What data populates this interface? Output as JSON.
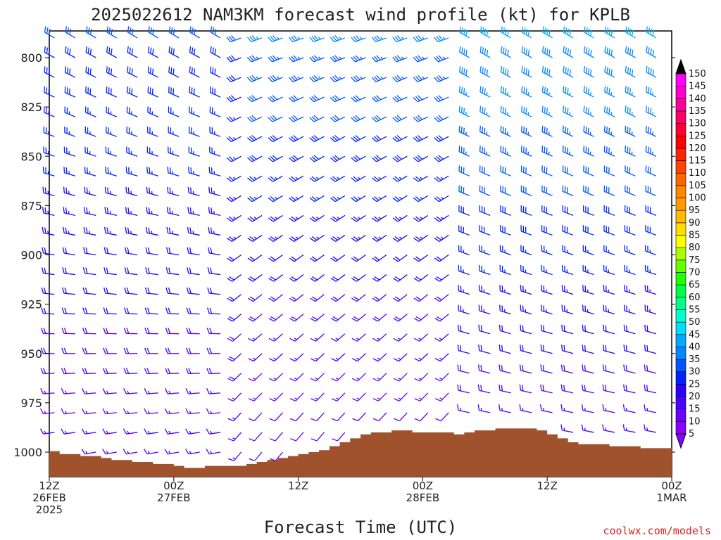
{
  "chart_data": {
    "type": "wind-profile-timeseries",
    "title": "2025022612 NAM3KM forecast wind profile (kt) for KPLB",
    "xlabel": "Forecast Time (UTC)",
    "credit": "coolwx.com/models",
    "y_axis": {
      "label": "",
      "inverted": true,
      "ticks": [
        800,
        825,
        850,
        875,
        900,
        925,
        950,
        975,
        1000
      ],
      "ylim": [
        1010,
        790
      ]
    },
    "x_axis": {
      "ticks": [
        {
          "hour": 0,
          "lines": [
            "12Z",
            "26FEB",
            "2025"
          ]
        },
        {
          "hour": 12,
          "lines": [
            "00Z",
            "27FEB"
          ]
        },
        {
          "hour": 24,
          "lines": [
            "12Z"
          ]
        },
        {
          "hour": 36,
          "lines": [
            "00Z",
            "28FEB"
          ]
        },
        {
          "hour": 48,
          "lines": [
            "12Z"
          ]
        },
        {
          "hour": 60,
          "lines": [
            "00Z",
            "1MAR"
          ]
        }
      ],
      "xlim": [
        0,
        60
      ]
    },
    "colorbar": {
      "labels": [
        5,
        10,
        15,
        20,
        25,
        30,
        35,
        40,
        45,
        50,
        55,
        60,
        65,
        70,
        75,
        80,
        85,
        90,
        95,
        100,
        105,
        110,
        115,
        120,
        125,
        130,
        135,
        140,
        145,
        150
      ],
      "colors": [
        "#8b00ff",
        "#6a00ff",
        "#4b00ff",
        "#2a00ff",
        "#0022ff",
        "#0055ff",
        "#0088ff",
        "#00aaff",
        "#00ddff",
        "#00ffcc",
        "#00ff88",
        "#00ff44",
        "#22ff00",
        "#66ff00",
        "#aaff00",
        "#ffff00",
        "#ffdd00",
        "#ffbb00",
        "#ff9900",
        "#ff8800",
        "#ff6600",
        "#ff4400",
        "#ff2200",
        "#ff0000",
        "#ff0033",
        "#ff0066",
        "#ff0099",
        "#ff00cc",
        "#ff00ff"
      ]
    },
    "terrain": {
      "color": "#a0522d",
      "surface_pressure": [
        [
          0,
          999.5
        ],
        [
          1,
          1001
        ],
        [
          2,
          1001
        ],
        [
          3,
          1002
        ],
        [
          4,
          1002
        ],
        [
          5,
          1003
        ],
        [
          6,
          1004
        ],
        [
          7,
          1004
        ],
        [
          8,
          1005
        ],
        [
          9,
          1005
        ],
        [
          10,
          1006
        ],
        [
          11,
          1006
        ],
        [
          12,
          1007
        ],
        [
          13,
          1008
        ],
        [
          14,
          1008
        ],
        [
          15,
          1007
        ],
        [
          16,
          1007
        ],
        [
          17,
          1007
        ],
        [
          18,
          1007
        ],
        [
          19,
          1006
        ],
        [
          20,
          1005
        ],
        [
          21,
          1004
        ],
        [
          22,
          1003
        ],
        [
          23,
          1002
        ],
        [
          24,
          1001
        ],
        [
          25,
          1000
        ],
        [
          26,
          999
        ],
        [
          27,
          997
        ],
        [
          28,
          995
        ],
        [
          29,
          993
        ],
        [
          30,
          991
        ],
        [
          31,
          990
        ],
        [
          32,
          990
        ],
        [
          33,
          989
        ],
        [
          34,
          989
        ],
        [
          35,
          990
        ],
        [
          36,
          990
        ],
        [
          37,
          990
        ],
        [
          38,
          990
        ],
        [
          39,
          991
        ],
        [
          40,
          990
        ],
        [
          41,
          989
        ],
        [
          42,
          989
        ],
        [
          43,
          988
        ],
        [
          44,
          988
        ],
        [
          45,
          988
        ],
        [
          46,
          988
        ],
        [
          47,
          989
        ],
        [
          48,
          991
        ],
        [
          49,
          993
        ],
        [
          50,
          995
        ],
        [
          51,
          996
        ],
        [
          52,
          996
        ],
        [
          53,
          996
        ],
        [
          54,
          997
        ],
        [
          55,
          997
        ],
        [
          56,
          997
        ],
        [
          57,
          998
        ],
        [
          58,
          998
        ],
        [
          59,
          998
        ],
        [
          60,
          998
        ]
      ]
    },
    "wind_rows_pressure": [
      790,
      800,
      810,
      820,
      830,
      840,
      850,
      860,
      870,
      880,
      890,
      900,
      910,
      920,
      930,
      940,
      950,
      960,
      970,
      980,
      990,
      1000
    ],
    "wind_columns_hour": [
      0.5,
      2.5,
      4.5,
      6.5,
      8.5,
      10.5,
      12.5,
      14.5,
      16.5,
      18.5,
      20.5,
      22.5,
      24.5,
      26.5,
      28.5,
      30.5,
      32.5,
      34.5,
      36.5,
      38.5,
      40.5,
      42.5,
      44.5,
      46.5,
      48.5,
      50.5,
      52.5,
      54.5,
      56.5,
      58.5
    ],
    "wind_note": "Each barb = wind direction (deg, from) and speed (kt) at given hour and pressure level",
    "wind_dir_key": [
      [
        300,
        300,
        300,
        300,
        300,
        290,
        270,
        260,
        240,
        230,
        230,
        250,
        240,
        230,
        230,
        240,
        250,
        260,
        270,
        280,
        290,
        300,
        300,
        300,
        300,
        300,
        300,
        300,
        300,
        300
      ],
      [
        300,
        300,
        300,
        300,
        300,
        290,
        270,
        260,
        240,
        230,
        230,
        250,
        240,
        230,
        230,
        240,
        250,
        260,
        270,
        280,
        290,
        300,
        300,
        300,
        300,
        300,
        300,
        300,
        300,
        300
      ]
    ],
    "wind_speed_summary": {
      "upper_left": 30,
      "lower_left": 15,
      "middle_upper": 35,
      "middle_lower": 10,
      "upper_right": 40,
      "lower_right": 15
    }
  }
}
